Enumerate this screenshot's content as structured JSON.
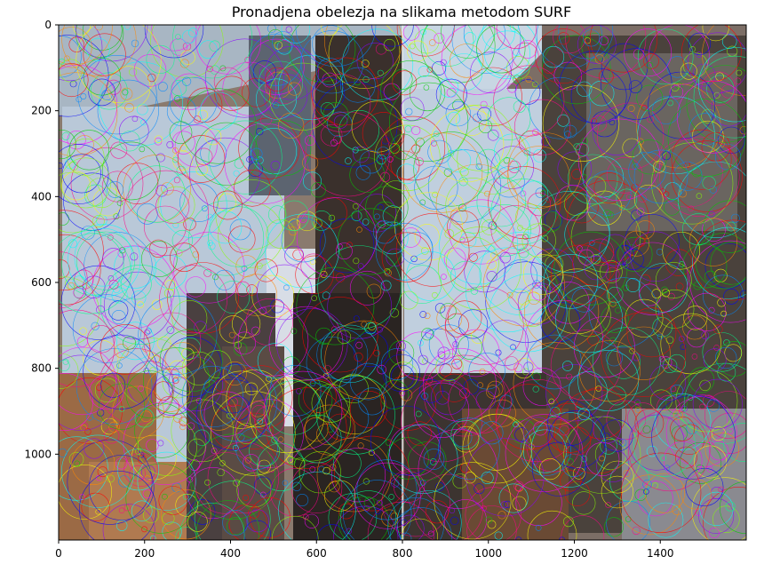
{
  "chart_data": {
    "type": "image",
    "title": "Pronadjena obelezja na slikama metodom SURF",
    "xlabel": "",
    "ylabel": "",
    "xlim": [
      0,
      1600
    ],
    "ylim": [
      1200,
      0
    ],
    "xticks": [
      0,
      200,
      400,
      600,
      800,
      1000,
      1200,
      1400
    ],
    "yticks": [
      0,
      200,
      400,
      600,
      800,
      1000
    ],
    "grid": false,
    "image": {
      "panels": [
        {
          "name": "left-photo",
          "x_range": [
            0,
            800
          ]
        },
        {
          "name": "right-photo",
          "x_range": [
            800,
            1600
          ]
        }
      ],
      "keypoint_colors": [
        "#ff0000",
        "#00cc00",
        "#0000ff",
        "#ff00ff",
        "#00ffff",
        "#ffff00",
        "#ff8800",
        "#8800ff",
        "#00ff88",
        "#ff0088",
        "#88ff00",
        "#0088ff"
      ]
    }
  }
}
